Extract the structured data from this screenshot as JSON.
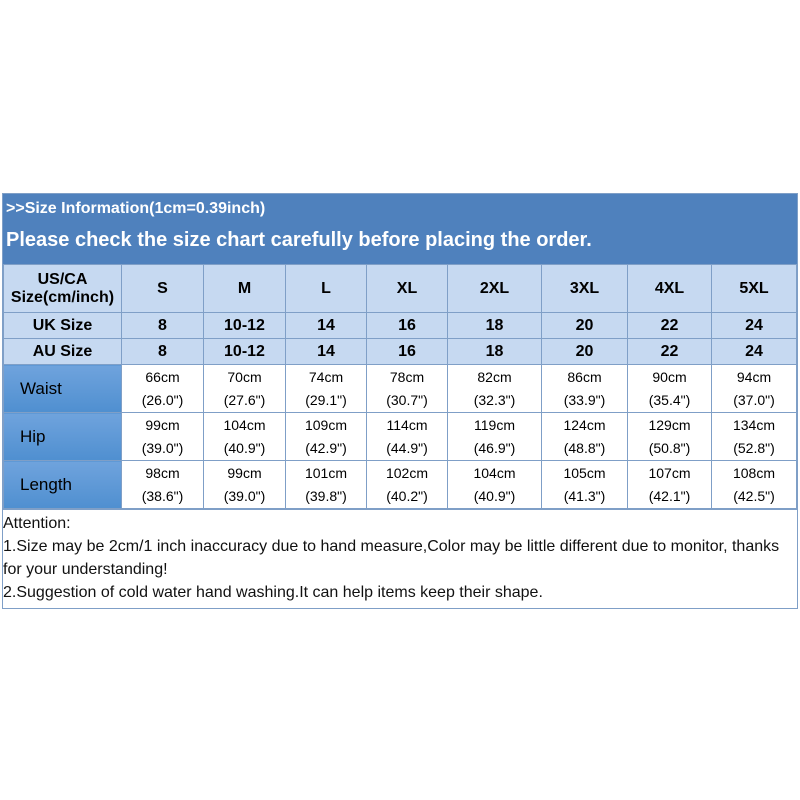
{
  "header": {
    "line1": ">>Size  Information(1cm=0.39inch)",
    "line2": "Please check the size chart carefully before placing the order."
  },
  "table": {
    "us_label": "US/CA Size(cm/inch)",
    "sizes": [
      "S",
      "M",
      "L",
      "XL",
      "2XL",
      "3XL",
      "4XL",
      "5XL"
    ],
    "uk": {
      "label": "UK Size",
      "values": [
        "8",
        "10-12",
        "14",
        "16",
        "18",
        "20",
        "22",
        "24"
      ]
    },
    "au": {
      "label": "AU Size",
      "values": [
        "8",
        "10-12",
        "14",
        "16",
        "18",
        "20",
        "22",
        "24"
      ]
    },
    "rows": [
      {
        "label": "Waist",
        "cm": [
          "66cm",
          "70cm",
          "74cm",
          "78cm",
          "82cm",
          "86cm",
          "90cm",
          "94cm"
        ],
        "inch": [
          "(26.0\")",
          "(27.6\")",
          "(29.1\")",
          "(30.7\")",
          "(32.3\")",
          "(33.9\")",
          "(35.4\")",
          "(37.0\")"
        ]
      },
      {
        "label": "Hip",
        "cm": [
          "99cm",
          "104cm",
          "109cm",
          "114cm",
          "119cm",
          "124cm",
          "129cm",
          "134cm"
        ],
        "inch": [
          "(39.0\")",
          "(40.9\")",
          "(42.9\")",
          "(44.9\")",
          "(46.9\")",
          "(48.8\")",
          "(50.8\")",
          "(52.8\")"
        ]
      },
      {
        "label": "Length",
        "cm": [
          "98cm",
          "99cm",
          "101cm",
          "102cm",
          "104cm",
          "105cm",
          "107cm",
          "108cm"
        ],
        "inch": [
          "(38.6\")",
          "(39.0\")",
          "(39.8\")",
          "(40.2\")",
          "(40.9\")",
          "(41.3\")",
          "(42.1\")",
          "(42.5\")"
        ]
      }
    ]
  },
  "attention": {
    "title": "Attention:",
    "line1": "1.Size may be 2cm/1  inch inaccuracy due to hand measure,Color may be little different due to monitor, thanks for your understanding!",
    "line2": "2.Suggestion of cold water hand washing.It can help items keep their shape."
  },
  "colors": {
    "header_bg": "#4f81bd",
    "cell_bg": "#c6d9f1",
    "label_bg": "#5b9bd5"
  }
}
